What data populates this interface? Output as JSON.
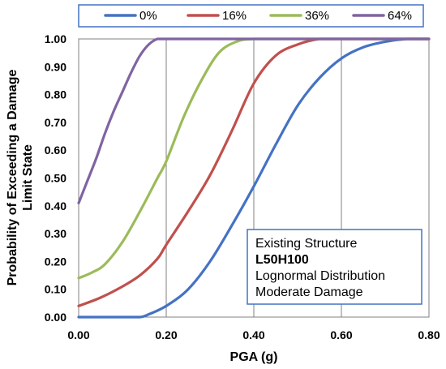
{
  "chart_data": {
    "type": "line",
    "title": "",
    "xlabel": "PGA (g)",
    "ylabel_lines": [
      "Probability of Exceeding a Damage",
      "Limit State"
    ],
    "xlim": [
      0,
      0.8
    ],
    "ylim": [
      0,
      1
    ],
    "x_ticks": [
      "0.00",
      "0.20",
      "0.40",
      "0.60",
      "0.80"
    ],
    "x_tick_values": [
      0,
      0.2,
      0.4,
      0.6,
      0.8
    ],
    "y_ticks": [
      "0.00",
      "0.10",
      "0.20",
      "0.30",
      "0.40",
      "0.50",
      "0.60",
      "0.70",
      "0.80",
      "0.90",
      "1.00"
    ],
    "y_tick_values": [
      0,
      0.1,
      0.2,
      0.3,
      0.4,
      0.5,
      0.6,
      0.7,
      0.8,
      0.9,
      1.0
    ],
    "grid": "vertical",
    "legend_position": "top",
    "series": [
      {
        "name": "0%",
        "color": "#4472C4",
        "x": [
          0.0,
          0.05,
          0.1,
          0.14,
          0.16,
          0.2,
          0.25,
          0.3,
          0.35,
          0.4,
          0.45,
          0.5,
          0.55,
          0.6,
          0.65,
          0.7,
          0.75,
          0.8
        ],
        "y": [
          0.0,
          0.0,
          0.0,
          0.0,
          0.01,
          0.04,
          0.1,
          0.2,
          0.33,
          0.47,
          0.62,
          0.76,
          0.86,
          0.93,
          0.97,
          0.99,
          1.0,
          1.0
        ]
      },
      {
        "name": "16%",
        "color": "#C0504D",
        "x": [
          0.0,
          0.05,
          0.1,
          0.14,
          0.18,
          0.2,
          0.25,
          0.3,
          0.35,
          0.4,
          0.45,
          0.5,
          0.55,
          0.6,
          0.7,
          0.8
        ],
        "y": [
          0.04,
          0.07,
          0.11,
          0.15,
          0.21,
          0.26,
          0.38,
          0.51,
          0.67,
          0.84,
          0.94,
          0.98,
          1.0,
          1.0,
          1.0,
          1.0
        ]
      },
      {
        "name": "36%",
        "color": "#9BBB59",
        "x": [
          0.0,
          0.03,
          0.06,
          0.1,
          0.14,
          0.18,
          0.2,
          0.24,
          0.28,
          0.32,
          0.36,
          0.4,
          0.5,
          0.6,
          0.7,
          0.8
        ],
        "y": [
          0.14,
          0.16,
          0.19,
          0.27,
          0.38,
          0.5,
          0.56,
          0.72,
          0.85,
          0.95,
          0.99,
          1.0,
          1.0,
          1.0,
          1.0,
          1.0
        ]
      },
      {
        "name": "64%",
        "color": "#8064A2",
        "x": [
          0.0,
          0.02,
          0.04,
          0.06,
          0.08,
          0.1,
          0.12,
          0.14,
          0.16,
          0.18,
          0.2,
          0.3,
          0.4,
          0.5,
          0.6,
          0.7,
          0.8
        ],
        "y": [
          0.41,
          0.49,
          0.57,
          0.66,
          0.74,
          0.81,
          0.88,
          0.94,
          0.98,
          1.0,
          1.0,
          1.0,
          1.0,
          1.0,
          1.0,
          1.0,
          1.0
        ]
      }
    ],
    "annotation": {
      "lines": [
        {
          "text": "Existing Structure",
          "bold": false
        },
        {
          "text": "L50H100",
          "bold": true
        },
        {
          "text": "Lognormal  Distribution",
          "bold": false
        },
        {
          "text": "Moderate  Damage",
          "bold": false
        }
      ]
    }
  }
}
